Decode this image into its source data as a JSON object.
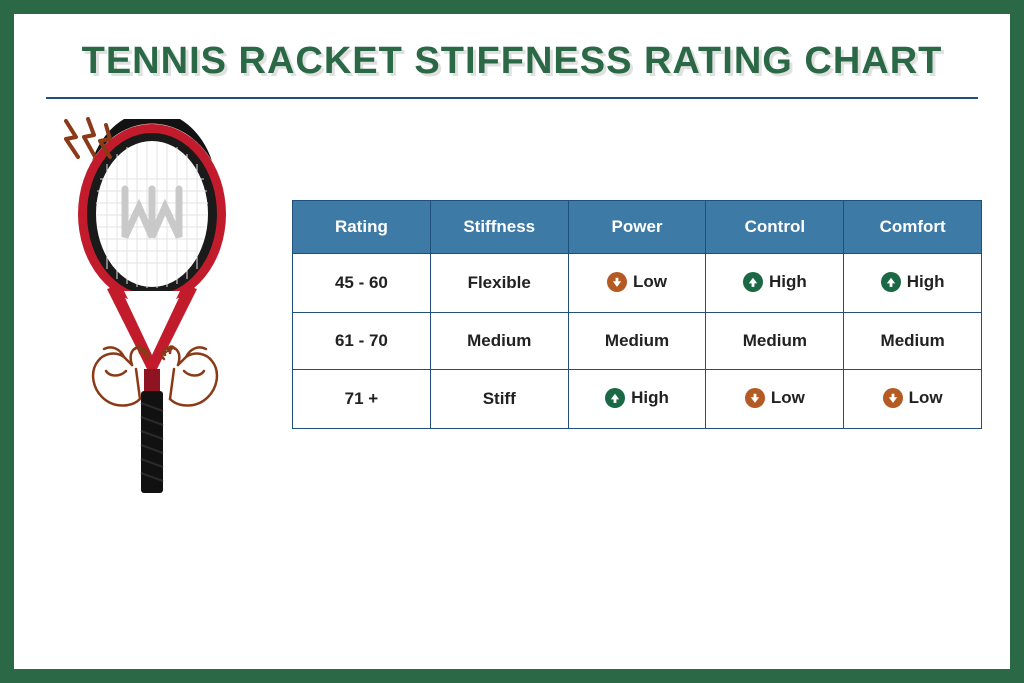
{
  "title": "TENNIS RACKET STIFFNESS RATING CHART",
  "title_color": "#2a6846",
  "title_shadow": "rgba(0,0,0,0.12)",
  "title_fontsize": 38,
  "frame_border_color": "#2a6846",
  "underline_color": "#1f4f7a",
  "table": {
    "type": "table",
    "header_bg": "#3e7aa6",
    "header_fg": "#ffffff",
    "border_color": "#1f4f7a",
    "cell_fontsize": 17,
    "header_fontsize": 17,
    "columns": [
      "Rating",
      "Stiffness",
      "Power",
      "Control",
      "Comfort"
    ],
    "rows": [
      {
        "rating": "45 - 60",
        "stiffness": "Flexible",
        "power": {
          "label": "Low",
          "icon": "down"
        },
        "control": {
          "label": "High",
          "icon": "up"
        },
        "comfort": {
          "label": "High",
          "icon": "up"
        }
      },
      {
        "rating": "61 - 70",
        "stiffness": "Medium",
        "power": {
          "label": "Medium",
          "icon": null
        },
        "control": {
          "label": "Medium",
          "icon": null
        },
        "comfort": {
          "label": "Medium",
          "icon": null
        }
      },
      {
        "rating": "71 +",
        "stiffness": "Stiff",
        "power": {
          "label": "High",
          "icon": "up"
        },
        "control": {
          "label": "Low",
          "icon": "down"
        },
        "comfort": {
          "label": "Low",
          "icon": "down"
        }
      }
    ]
  },
  "icons": {
    "up_bg": "#1a6845",
    "down_bg": "#b45a23",
    "arrow_fg": "#ffffff"
  },
  "racket": {
    "frame_top_color": "#121212",
    "frame_main_color": "#c11b2c",
    "string_color": "#e3e3e3",
    "handle_color": "#111111",
    "logo_color": "#c9c9c9"
  },
  "decor": {
    "spark_color": "#8a3a17",
    "flex_color": "#8a3a17"
  }
}
